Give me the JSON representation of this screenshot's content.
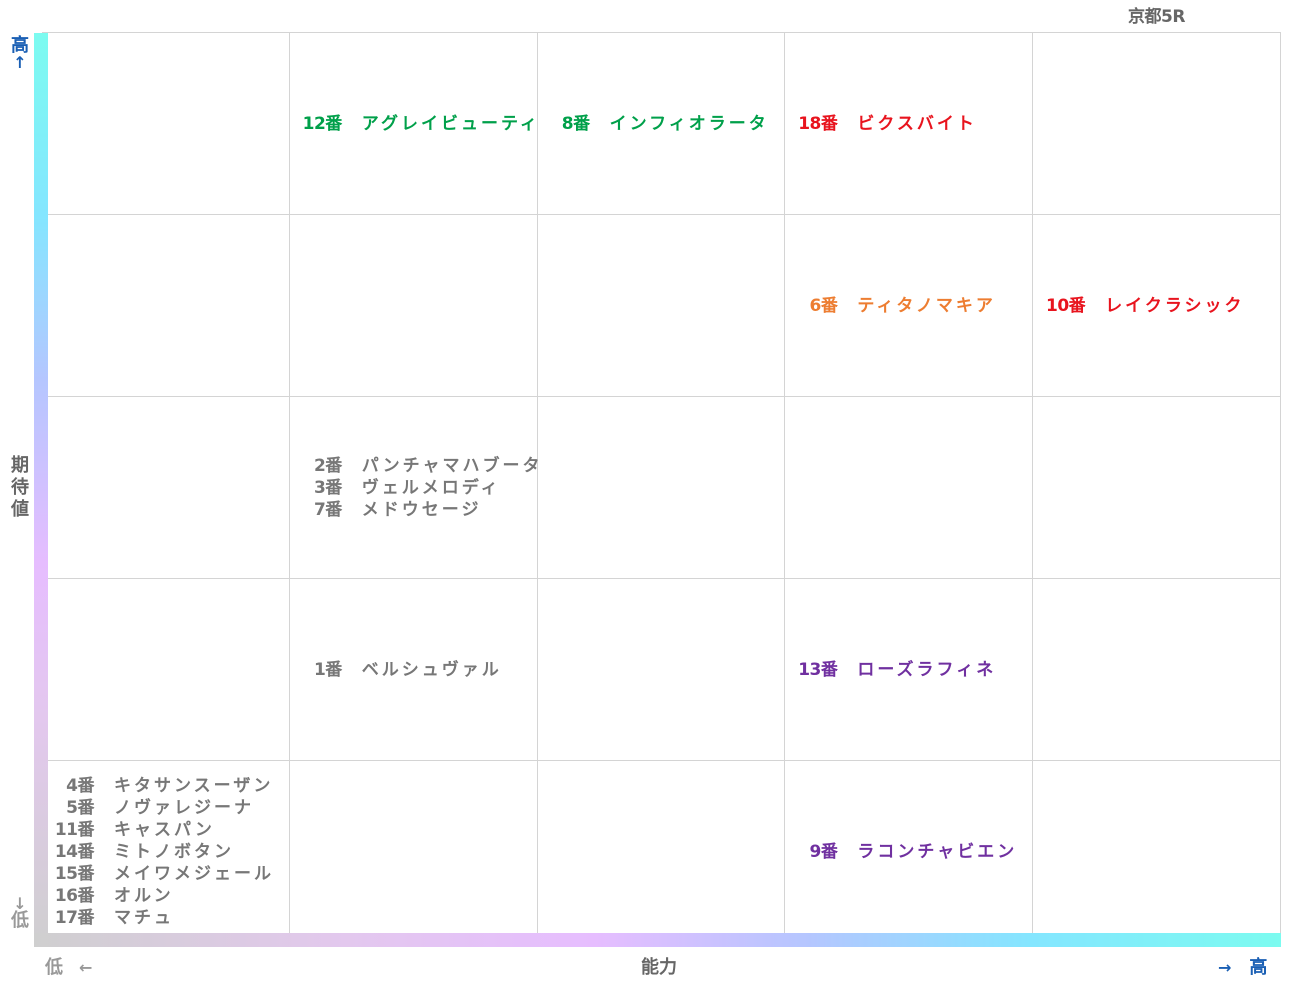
{
  "header": {
    "race_title": "京都5R"
  },
  "chart_data": {
    "type": "table",
    "xlabel": "能力",
    "ylabel": "期待値",
    "x_low_label": "低",
    "x_high_label": "高",
    "y_low_label": "低",
    "y_high_label": "高",
    "arrow_left": "←",
    "arrow_right": "→",
    "arrow_up": "↑",
    "arrow_down": "↓",
    "columns": 5,
    "rows": 5,
    "cells": [
      {
        "ability": 2,
        "expectation": 5,
        "color": "#00a04a",
        "horses": [
          {
            "num": "12番",
            "name": "アグレイビューティ"
          }
        ]
      },
      {
        "ability": 3,
        "expectation": 5,
        "color": "#00a04a",
        "horses": [
          {
            "num": "8番",
            "name": "インフィオラータ"
          }
        ]
      },
      {
        "ability": 4,
        "expectation": 5,
        "color": "#e8141e",
        "horses": [
          {
            "num": "18番",
            "name": "ビクスバイト"
          }
        ]
      },
      {
        "ability": 4,
        "expectation": 4,
        "color": "#ed7d31",
        "horses": [
          {
            "num": "6番",
            "name": "ティタノマキア"
          }
        ]
      },
      {
        "ability": 5,
        "expectation": 4,
        "color": "#e8141e",
        "horses": [
          {
            "num": "10番",
            "name": "レイクラシック"
          }
        ]
      },
      {
        "ability": 2,
        "expectation": 3,
        "color": "#777777",
        "horses": [
          {
            "num": "2番",
            "name": "パンチャマハブータ"
          },
          {
            "num": "3番",
            "name": "ヴェルメロディ"
          },
          {
            "num": "7番",
            "name": "メドウセージ"
          }
        ]
      },
      {
        "ability": 2,
        "expectation": 2,
        "color": "#777777",
        "horses": [
          {
            "num": "1番",
            "name": "ベルシュヴァル"
          }
        ]
      },
      {
        "ability": 4,
        "expectation": 2,
        "color": "#7030a0",
        "horses": [
          {
            "num": "13番",
            "name": "ローズラフィネ"
          }
        ]
      },
      {
        "ability": 1,
        "expectation": 1,
        "color": "#777777",
        "horses": [
          {
            "num": "4番",
            "name": "キタサンスーザン"
          },
          {
            "num": "5番",
            "name": "ノヴァレジーナ"
          },
          {
            "num": "11番",
            "name": "キャスパン"
          },
          {
            "num": "14番",
            "name": "ミトノボタン"
          },
          {
            "num": "15番",
            "name": "メイワメジェール"
          },
          {
            "num": "16番",
            "name": "オルン"
          },
          {
            "num": "17番",
            "name": "マチュ"
          }
        ]
      },
      {
        "ability": 4,
        "expectation": 1,
        "color": "#7030a0",
        "horses": [
          {
            "num": "9番",
            "name": "ラコンチャビエン"
          }
        ]
      }
    ]
  }
}
